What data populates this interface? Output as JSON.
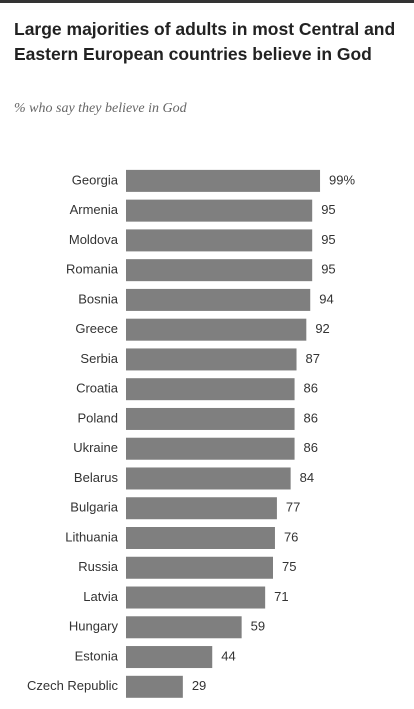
{
  "chart_data": {
    "type": "bar",
    "orientation": "horizontal",
    "title": "Large majorities of adults in most Central and Eastern European countries believe in God",
    "subtitle": "% who say they believe in God",
    "categories": [
      "Georgia",
      "Armenia",
      "Moldova",
      "Romania",
      "Bosnia",
      "Greece",
      "Serbia",
      "Croatia",
      "Poland",
      "Ukraine",
      "Belarus",
      "Bulgaria",
      "Lithuania",
      "Russia",
      "Latvia",
      "Hungary",
      "Estonia",
      "Czech Republic"
    ],
    "values": [
      99,
      95,
      95,
      95,
      94,
      92,
      87,
      86,
      86,
      86,
      84,
      77,
      76,
      75,
      71,
      59,
      44,
      29
    ],
    "value_labels": [
      "99%",
      "95",
      "95",
      "95",
      "94",
      "92",
      "87",
      "86",
      "86",
      "86",
      "84",
      "77",
      "76",
      "75",
      "71",
      "59",
      "44",
      "29"
    ],
    "color": "#7f7f7f",
    "xlim": [
      0,
      100
    ]
  }
}
